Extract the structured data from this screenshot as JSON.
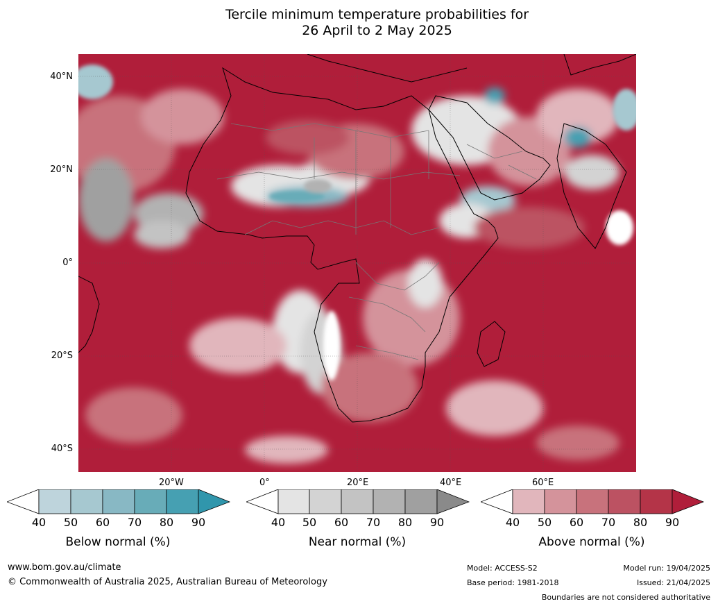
{
  "title_line1": "Tercile minimum temperature probabilities for",
  "title_line2": "26 April to 2 May 2025",
  "lat_labels": [
    "40°N",
    "20°N",
    "0°",
    "20°S",
    "40°S"
  ],
  "lon_labels": [
    "20°W",
    "0°",
    "20°E",
    "40°E",
    "60°E"
  ],
  "colorbars": [
    {
      "label": "Below normal (%)",
      "ticks": [
        "40",
        "50",
        "60",
        "70",
        "80",
        "90"
      ],
      "colors": [
        "#ffffff",
        "#bed4dc",
        "#a6c8d0",
        "#88b8c4",
        "#68acb8",
        "#46a0b2",
        "#3096ac"
      ]
    },
    {
      "label": "Near normal (%)",
      "ticks": [
        "40",
        "50",
        "60",
        "70",
        "80",
        "90"
      ],
      "colors": [
        "#ffffff",
        "#e4e4e4",
        "#d3d3d3",
        "#c3c3c3",
        "#b2b2b2",
        "#a0a0a0",
        "#8a8a8a"
      ]
    },
    {
      "label": "Above normal (%)",
      "ticks": [
        "40",
        "50",
        "60",
        "70",
        "80",
        "90"
      ],
      "colors": [
        "#ffffff",
        "#e1b6bc",
        "#d4939b",
        "#c8727c",
        "#bc5262",
        "#b43448",
        "#b01e3a"
      ]
    }
  ],
  "footer": {
    "url": "www.bom.gov.au/climate",
    "copyright": "© Commonwealth of Australia 2025, Australian Bureau of Meteorology",
    "model": "Model: ACCESS-S2",
    "base_period": "Base period: 1981-2018",
    "model_run": "Model run: 19/04/2025",
    "issued": "Issued: 21/04/2025",
    "disclaimer": "Boundaries are not considered authoritative"
  }
}
